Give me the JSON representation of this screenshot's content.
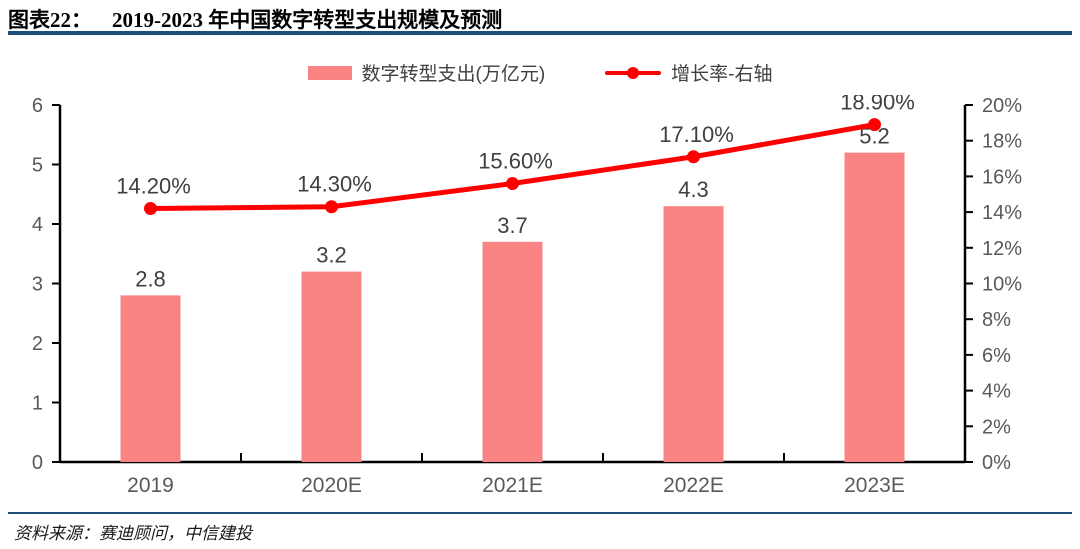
{
  "header": {
    "figure_label": "图表22：",
    "figure_title": "2019-2023 年中国数字转型支出规模及预测"
  },
  "source": {
    "text": "资料来源：赛迪顾问，中信建投"
  },
  "colors": {
    "bar": "#FA8383",
    "line": "#FF0000",
    "accent_rule": "#1F4E79",
    "tick_label": "#595959",
    "data_label": "#404040",
    "axis": "#000000"
  },
  "chart_data": {
    "type": "bar",
    "subtype": "bar+line combo, dual axis",
    "title": "2019-2023 年中国数字转型支出规模及预测",
    "categories": [
      "2019",
      "2020E",
      "2021E",
      "2022E",
      "2023E"
    ],
    "series": [
      {
        "name": "数字转型支出(万亿元)",
        "type": "bar",
        "axis": "left",
        "values": [
          2.8,
          3.2,
          3.7,
          4.3,
          5.2
        ],
        "labels": [
          "2.8",
          "3.2",
          "3.7",
          "4.3",
          "5.2"
        ],
        "color": "#FA8383"
      },
      {
        "name": "增长率-右轴",
        "type": "line",
        "axis": "right",
        "values": [
          14.2,
          14.3,
          15.6,
          17.1,
          18.9
        ],
        "labels": [
          "14.20%",
          "14.30%",
          "15.60%",
          "17.10%",
          "18.90%"
        ],
        "color": "#FF0000"
      }
    ],
    "left_axis": {
      "min": 0,
      "max": 6,
      "step": 1,
      "suffix": ""
    },
    "right_axis": {
      "min": 0,
      "max": 20,
      "step": 2,
      "suffix": "%"
    },
    "grid": false,
    "legend_position": "top"
  }
}
